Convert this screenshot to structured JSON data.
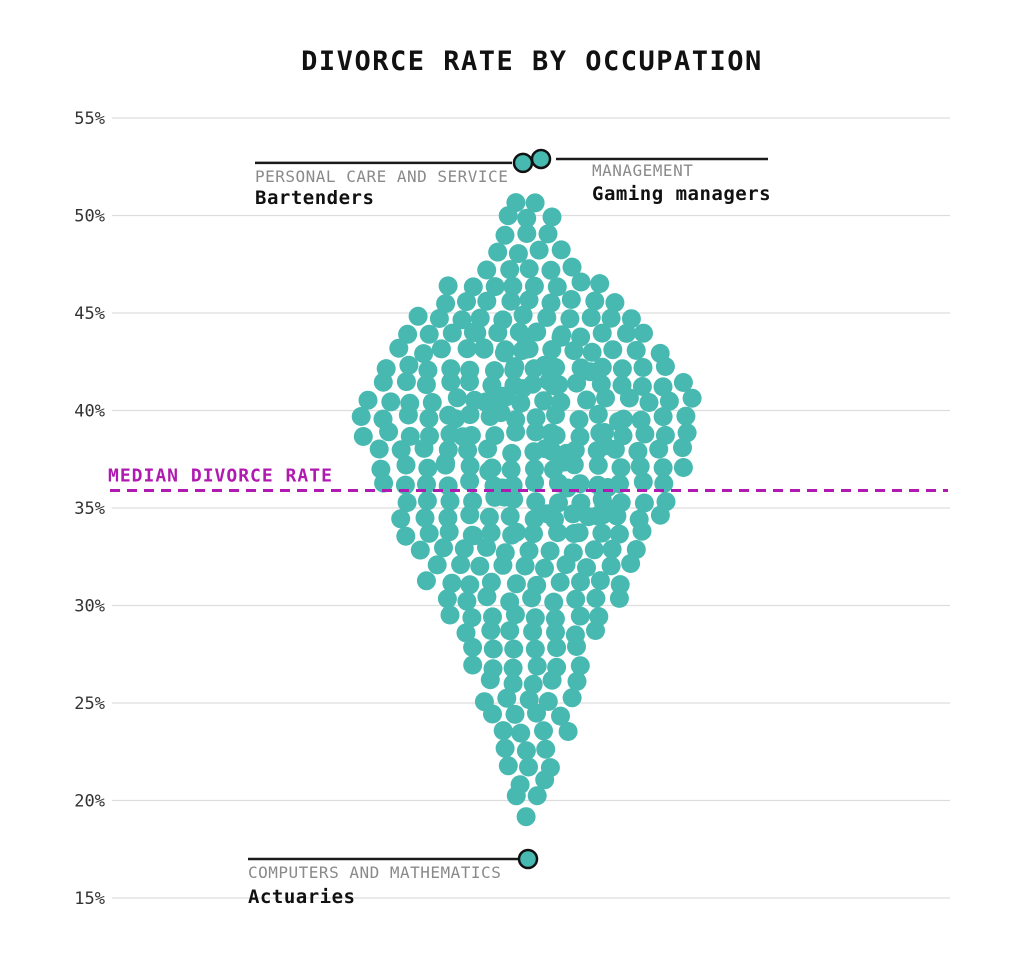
{
  "title": "DIVORCE RATE BY OCCUPATION",
  "colors": {
    "dot": "#48b9b1",
    "dot_outline": "#111111",
    "median": "#b01ab0",
    "grid": "#dddddd",
    "category_text": "#8a8a8a",
    "text": "#111111",
    "line": "#1a1a1a"
  },
  "y_axis": {
    "unit": "%",
    "ticks": [
      {
        "label": "55%",
        "value": 55
      },
      {
        "label": "50%",
        "value": 50
      },
      {
        "label": "45%",
        "value": 45
      },
      {
        "label": "40%",
        "value": 40
      },
      {
        "label": "35%",
        "value": 35
      },
      {
        "label": "30%",
        "value": 30
      },
      {
        "label": "25%",
        "value": 25
      },
      {
        "label": "20%",
        "value": 20
      },
      {
        "label": "15%",
        "value": 15
      }
    ]
  },
  "median": {
    "label": "MEDIAN DIVORCE RATE",
    "value": 35.9
  },
  "annotations": {
    "top_left": {
      "category": "PERSONAL CARE AND SERVICE",
      "name": "Bartenders",
      "value": 52.7
    },
    "top_right": {
      "category": "MANAGEMENT",
      "name": "Gaming managers",
      "value": 52.9
    },
    "bottom": {
      "category": "COMPUTERS AND MATHEMATICS",
      "name": "Actuaries",
      "value": 17.0
    }
  },
  "chart_data": {
    "type": "scatter",
    "variant": "beeswarm",
    "title": "DIVORCE RATE BY OCCUPATION",
    "xlabel": "",
    "ylabel": "",
    "ylim": [
      15,
      55
    ],
    "grid": true,
    "unit": "percent-divorced",
    "median_divorce_rate": 35.9,
    "highlights": [
      {
        "name": "Bartenders",
        "category": "PERSONAL CARE AND SERVICE",
        "rate": 52.7
      },
      {
        "name": "Gaming managers",
        "category": "MANAGEMENT",
        "rate": 52.9
      },
      {
        "name": "Actuaries",
        "category": "COMPUTERS AND MATHEMATICS",
        "rate": 17.0
      }
    ],
    "swarm_rows": [
      [
        50.7,
        2
      ],
      [
        49.85,
        3
      ],
      [
        49.0,
        3
      ],
      [
        48.15,
        4
      ],
      [
        47.3,
        5
      ],
      [
        46.45,
        8
      ],
      [
        45.6,
        9
      ],
      [
        44.75,
        11
      ],
      [
        43.9,
        12
      ],
      [
        43.05,
        13
      ],
      [
        42.2,
        14
      ],
      [
        41.35,
        15
      ],
      [
        40.5,
        16
      ],
      [
        39.65,
        16
      ],
      [
        38.8,
        16
      ],
      [
        37.95,
        15
      ],
      [
        37.1,
        15
      ],
      [
        36.25,
        14
      ],
      [
        35.4,
        13
      ],
      [
        34.55,
        13
      ],
      [
        33.7,
        12
      ],
      [
        32.85,
        11
      ],
      [
        32.0,
        10
      ],
      [
        31.15,
        10
      ],
      [
        30.3,
        9
      ],
      [
        29.45,
        8
      ],
      [
        28.6,
        7
      ],
      [
        27.75,
        6
      ],
      [
        26.9,
        6
      ],
      [
        26.05,
        5
      ],
      [
        25.2,
        5
      ],
      [
        24.35,
        4
      ],
      [
        23.5,
        4
      ],
      [
        22.65,
        3
      ],
      [
        21.8,
        3
      ],
      [
        20.95,
        2
      ],
      [
        20.1,
        2
      ],
      [
        19.25,
        1
      ]
    ]
  }
}
